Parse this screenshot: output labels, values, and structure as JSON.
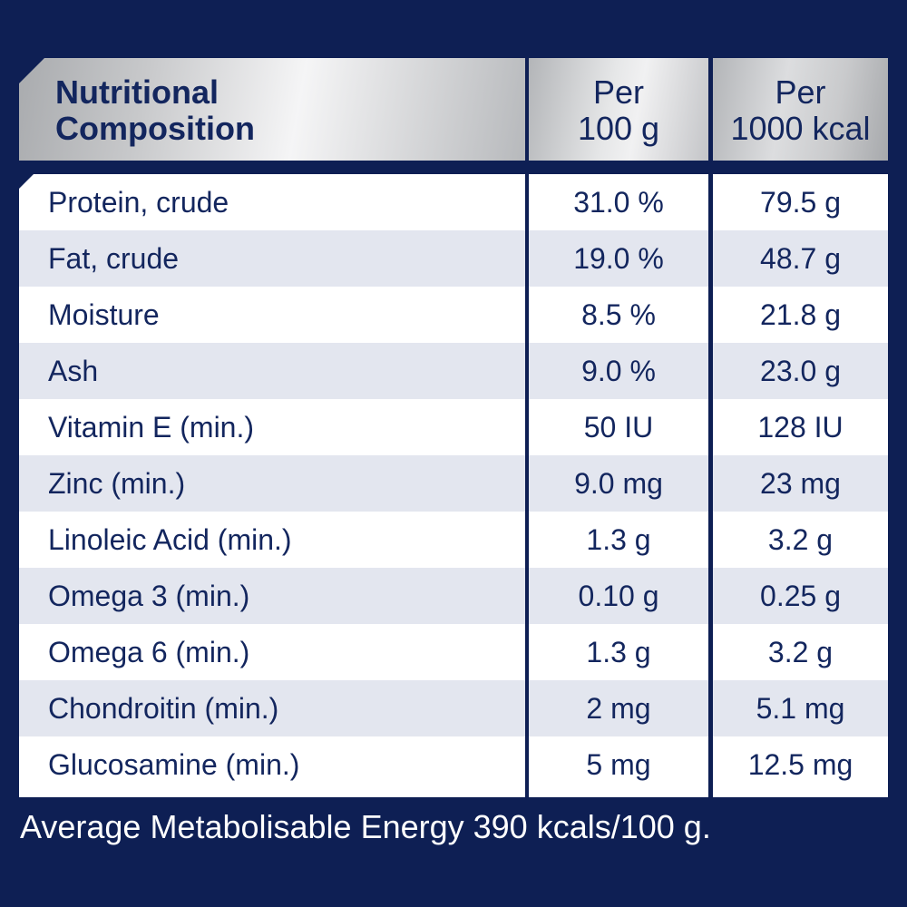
{
  "header": {
    "col1": [
      "Nutritional",
      "Composition"
    ],
    "col2": [
      "Per",
      "100 g"
    ],
    "col3": [
      "Per",
      "1000 kcal"
    ]
  },
  "rows": [
    {
      "name": "Protein, crude",
      "per_100g": "31.0 %",
      "per_1000kcal": "79.5 g"
    },
    {
      "name": "Fat, crude",
      "per_100g": "19.0 %",
      "per_1000kcal": "48.7 g"
    },
    {
      "name": "Moisture",
      "per_100g": "8.5 %",
      "per_1000kcal": "21.8 g"
    },
    {
      "name": "Ash",
      "per_100g": "9.0 %",
      "per_1000kcal": "23.0 g"
    },
    {
      "name": "Vitamin E (min.)",
      "per_100g": "50 IU",
      "per_1000kcal": "128 IU"
    },
    {
      "name": "Zinc (min.)",
      "per_100g": "9.0 mg",
      "per_1000kcal": "23 mg"
    },
    {
      "name": "Linoleic Acid (min.)",
      "per_100g": "1.3 g",
      "per_1000kcal": "3.2 g"
    },
    {
      "name": "Omega 3 (min.)",
      "per_100g": "0.10 g",
      "per_1000kcal": "0.25 g"
    },
    {
      "name": "Omega 6 (min.)",
      "per_100g": "1.3 g",
      "per_1000kcal": "3.2 g"
    },
    {
      "name": "Chondroitin (min.)",
      "per_100g": "2 mg",
      "per_1000kcal": "5.1 mg"
    },
    {
      "name": "Glucosamine (min.)",
      "per_100g": "5 mg",
      "per_1000kcal": "12.5 mg"
    }
  ],
  "footer": "Average Metabolisable Energy 390 kcals/100 g.",
  "colors": {
    "background": "#0e1f54",
    "text": "#13265e",
    "row_light": "#ffffff",
    "row_shaded": "#e3e6ef"
  }
}
